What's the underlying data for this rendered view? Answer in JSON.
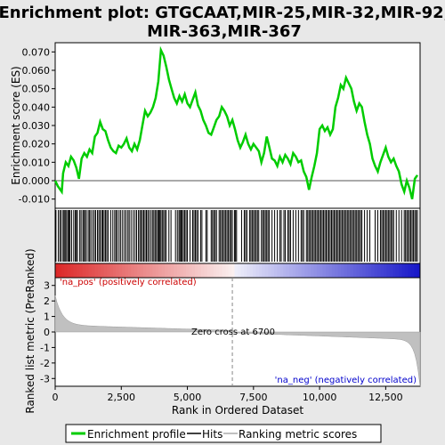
{
  "chart_data": {
    "type": "line",
    "title": "Enrichment plot: GTGCAAT,MIR-25,MIR-32,MIR-92,\nMIR-363,MIR-367",
    "top_panel": {
      "ylabel": "Enrichment score (ES)",
      "ylim": [
        -0.015,
        0.075
      ],
      "yticks": [
        -0.01,
        0.0,
        0.01,
        0.02,
        0.03,
        0.04,
        0.05,
        0.06,
        0.07
      ],
      "ytick_labels": [
        "-0.010",
        "0.000",
        "0.010",
        "0.020",
        "0.030",
        "0.040",
        "0.050",
        "0.060",
        "0.070"
      ],
      "line_color": "#00cc00",
      "series": [
        {
          "name": "Enrichment profile",
          "x": [
            0,
            100,
            250,
            300,
            400,
            500,
            600,
            700,
            800,
            900,
            1000,
            1100,
            1200,
            1300,
            1400,
            1500,
            1600,
            1700,
            1800,
            1900,
            2000,
            2100,
            2200,
            2300,
            2400,
            2500,
            2600,
            2700,
            2800,
            2900,
            3000,
            3100,
            3200,
            3300,
            3400,
            3500,
            3600,
            3700,
            3800,
            3900,
            4000,
            4100,
            4200,
            4300,
            4400,
            4500,
            4600,
            4700,
            4800,
            4900,
            5000,
            5100,
            5200,
            5300,
            5400,
            5500,
            5600,
            5700,
            5800,
            5900,
            6000,
            6100,
            6200,
            6300,
            6400,
            6500,
            6600,
            6700,
            6800,
            6900,
            7000,
            7100,
            7200,
            7300,
            7400,
            7500,
            7600,
            7700,
            7800,
            7900,
            8000,
            8100,
            8200,
            8300,
            8400,
            8500,
            8600,
            8700,
            8800,
            8900,
            9000,
            9100,
            9200,
            9300,
            9400,
            9500,
            9600,
            9700,
            9800,
            9900,
            10000,
            10100,
            10200,
            10300,
            10400,
            10500,
            10600,
            10700,
            10800,
            10900,
            11000,
            11100,
            11200,
            11300,
            11400,
            11500,
            11600,
            11700,
            11800,
            11900,
            12000,
            12100,
            12200,
            12300,
            12400,
            12500,
            12600,
            12700,
            12800,
            12900,
            13000,
            13100,
            13200,
            13300,
            13400,
            13500,
            13600,
            13700
          ],
          "values": [
            0.0,
            -0.003,
            -0.006,
            0.004,
            0.01,
            0.008,
            0.013,
            0.011,
            0.007,
            0.001,
            0.012,
            0.015,
            0.013,
            0.017,
            0.015,
            0.024,
            0.026,
            0.032,
            0.028,
            0.027,
            0.022,
            0.018,
            0.016,
            0.015,
            0.019,
            0.018,
            0.02,
            0.023,
            0.018,
            0.016,
            0.02,
            0.017,
            0.022,
            0.03,
            0.038,
            0.035,
            0.037,
            0.04,
            0.045,
            0.054,
            0.071,
            0.068,
            0.062,
            0.055,
            0.05,
            0.045,
            0.042,
            0.046,
            0.043,
            0.047,
            0.042,
            0.04,
            0.044,
            0.048,
            0.041,
            0.038,
            0.033,
            0.03,
            0.026,
            0.025,
            0.029,
            0.033,
            0.035,
            0.04,
            0.038,
            0.035,
            0.03,
            0.033,
            0.028,
            0.022,
            0.018,
            0.021,
            0.025,
            0.02,
            0.017,
            0.02,
            0.018,
            0.016,
            0.01,
            0.015,
            0.024,
            0.018,
            0.012,
            0.011,
            0.008,
            0.013,
            0.01,
            0.014,
            0.012,
            0.009,
            0.015,
            0.013,
            0.01,
            0.011,
            0.005,
            0.002,
            -0.005,
            0.002,
            0.008,
            0.015,
            0.028,
            0.03,
            0.027,
            0.029,
            0.025,
            0.028,
            0.04,
            0.045,
            0.052,
            0.05,
            0.056,
            0.053,
            0.05,
            0.043,
            0.038,
            0.042,
            0.04,
            0.032,
            0.025,
            0.02,
            0.012,
            0.008,
            0.005,
            0.01,
            0.014,
            0.018,
            0.013,
            0.01,
            0.012,
            0.008,
            0.005,
            -0.002,
            -0.006,
            0.0,
            -0.004,
            -0.01,
            0.001,
            0.003
          ]
        }
      ]
    },
    "hits_panel": {
      "legend_label": "Hits",
      "positions": [
        30,
        120,
        180,
        230,
        300,
        340,
        380,
        430,
        480,
        520,
        560,
        620,
        700,
        760,
        800,
        840,
        930,
        980,
        1050,
        1080,
        1130,
        1180,
        1250,
        1300,
        1350,
        1420,
        1480,
        1530,
        1600,
        1650,
        1700,
        1760,
        1800,
        1850,
        1900,
        1950,
        2000,
        2100,
        2180,
        2250,
        2300,
        2350,
        2420,
        2480,
        2550,
        2620,
        2680,
        2750,
        2800,
        2870,
        2950,
        3020,
        3080,
        3150,
        3200,
        3250,
        3300,
        3350,
        3400,
        3450,
        3500,
        3550,
        3620,
        3680,
        3730,
        3780,
        3830,
        3880,
        3920,
        3960,
        4000,
        4050,
        4100,
        4150,
        4200,
        4300,
        4380,
        4550,
        4620,
        4680,
        4720,
        4760,
        4800,
        4850,
        4900,
        4950,
        5000,
        5100,
        5200,
        5250,
        5300,
        5350,
        5400,
        5500,
        5550,
        5700,
        5750,
        5900,
        5950,
        6000,
        6050,
        6100,
        6200,
        6250,
        6300,
        6350,
        6400,
        6450,
        6500,
        6550,
        6600,
        6650,
        6700,
        6780,
        6820,
        6860,
        7050,
        7150,
        7200,
        7250,
        7350,
        7400,
        7450,
        7500,
        7550,
        7600,
        7650,
        7700,
        7800,
        7850,
        7900,
        7950,
        8000,
        8050,
        8100,
        8200,
        8300,
        8400,
        8500,
        8550,
        8650,
        8700,
        8800,
        8850,
        8900,
        9000,
        9100,
        9200,
        9300,
        9350,
        9400,
        9500,
        9550,
        9600,
        9650,
        9700,
        9750,
        9800,
        9850,
        9900,
        9950,
        10000,
        10050,
        10100,
        10150,
        10200,
        10250,
        10300,
        10350,
        10400,
        10450,
        10500,
        10550,
        10600,
        10650,
        10700,
        10750,
        10800,
        10850,
        10900,
        10950,
        11000,
        11050,
        11100,
        11150,
        11200,
        11250,
        11300,
        11350,
        11400,
        11450,
        11500,
        11550,
        11600,
        11700,
        11800,
        11900,
        12100,
        12200,
        12300,
        12350,
        12400,
        12450,
        12500,
        12550,
        12600,
        12650,
        12700,
        12750,
        12800,
        12900,
        13000,
        13100,
        13200,
        13250,
        13300,
        13350,
        13400,
        13450,
        13500,
        13550,
        13600,
        13650,
        13700
      ]
    },
    "metric_panel": {
      "ylabel": "Ranked list metric (PreRanked)",
      "xlabel": "Rank in Ordered Dataset",
      "ylim": [
        -3.5,
        3.5
      ],
      "yticks": [
        -3,
        -2,
        -1,
        0,
        1,
        2,
        3
      ],
      "ytick_labels": [
        "-3",
        "-2",
        "-1",
        "0",
        "1",
        "2",
        "3"
      ],
      "legend_label": "Ranking metric scores",
      "zero_cross_label": "Zero cross at 6700",
      "zero_cross": 6700,
      "pos_label": "'na_pos' (positively correlated)",
      "neg_label": "'na_neg' (negatively correlated)",
      "pos_color": "#cc0000",
      "neg_color": "#0000cc"
    },
    "xaxis": {
      "xlim": [
        0,
        13800
      ],
      "xticks": [
        0,
        2500,
        5000,
        7500,
        10000,
        12500
      ],
      "xtick_labels": [
        "0",
        "2,500",
        "5,000",
        "7,500",
        "10,000",
        "12,500"
      ]
    },
    "legend": {
      "enrichment": "Enrichment profile",
      "hits": "Hits",
      "metric": "Ranking metric scores"
    }
  }
}
